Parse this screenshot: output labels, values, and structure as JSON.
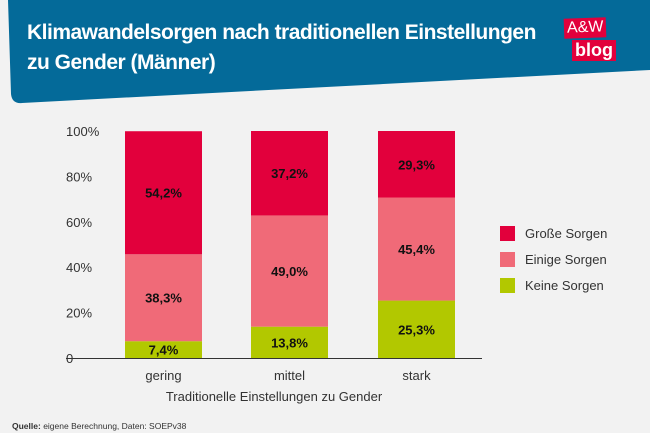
{
  "header": {
    "title": "Klimawandelsorgen nach traditionellen Einstellungen zu Gender (Männer)",
    "logo_top": "A&W",
    "logo_bottom": "blog"
  },
  "colors": {
    "header": "#046a99",
    "logo": "#e2003c",
    "grosse": "#e2003c",
    "einige": "#f06a78",
    "keine": "#b2c800"
  },
  "chart_data": {
    "type": "bar",
    "stacked": true,
    "categories": [
      "gering",
      "mittel",
      "stark"
    ],
    "series": [
      {
        "name": "Keine Sorgen",
        "values": [
          7.4,
          13.8,
          25.3
        ],
        "labels": [
          "7,4%",
          "13,8%",
          "25,3%"
        ],
        "color": "#b2c800"
      },
      {
        "name": "Einige Sorgen",
        "values": [
          38.3,
          49.0,
          45.4
        ],
        "labels": [
          "38,3%",
          "49,0%",
          "45,4%"
        ],
        "color": "#f06a78"
      },
      {
        "name": "Große Sorgen",
        "values": [
          54.2,
          37.2,
          29.3
        ],
        "labels": [
          "54,2%",
          "37,2%",
          "29,3%"
        ],
        "color": "#e2003c"
      }
    ],
    "legend_order": [
      "Große Sorgen",
      "Einige Sorgen",
      "Keine Sorgen"
    ],
    "legend_placement": "right",
    "yticks": [
      "0",
      "20%",
      "40%",
      "60%",
      "80%",
      "100%"
    ],
    "ylim": [
      0,
      100
    ],
    "xlabel": "Traditionelle Einstellungen zu Gender",
    "grid": false
  },
  "source": {
    "label": "Quelle:",
    "text": "eigene Berechnung, Daten: SOEPv38"
  }
}
